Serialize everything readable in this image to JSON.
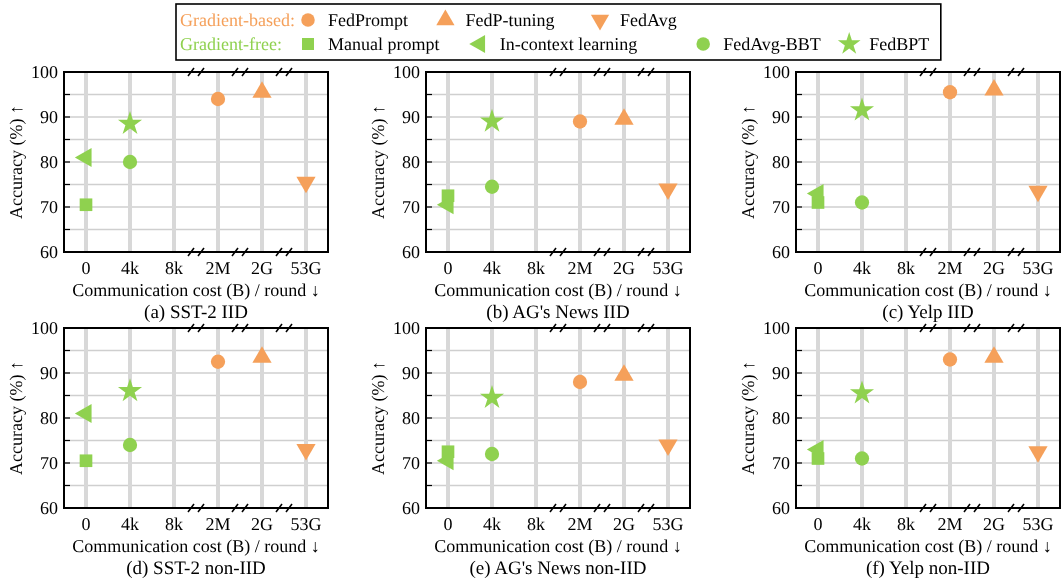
{
  "chart_data": [
    {
      "type": "scatter",
      "title": "(a) SST-2 IID",
      "xlabel": "Communication cost (B) / round ↓",
      "ylabel": "Accuracy (%) ↑",
      "categories": [
        "0",
        "4k",
        "8k",
        "2M",
        "2G",
        "53G"
      ],
      "ylim": [
        60,
        100
      ],
      "yticks": [
        60,
        {
          "value": 65,
          "label": null
        },
        70,
        {
          "value": 75,
          "label": null
        },
        80,
        {
          "value": 85,
          "label": null
        },
        90,
        {
          "value": 95,
          "label": null
        },
        100
      ],
      "grid": true,
      "legend": "top",
      "annotations": [
        "Gradient-based:",
        "Gradient-free:"
      ],
      "series": [
        {
          "name": "FedPrompt",
          "color": "#f5a05a",
          "marker": "circle",
          "x": [
            "2M"
          ],
          "values": [
            94
          ]
        },
        {
          "name": "FedP-tuning",
          "color": "#f5a05a",
          "marker": "triangle",
          "x": [
            "2G"
          ],
          "values": [
            95.5
          ]
        },
        {
          "name": "FedAvg",
          "color": "#f5a05a",
          "marker": "triangle-down",
          "x": [
            "53G"
          ],
          "values": [
            75.5
          ]
        },
        {
          "name": "Manual prompt",
          "color": "#8fd14f",
          "marker": "square",
          "x": [
            "0"
          ],
          "values": [
            70.5
          ]
        },
        {
          "name": "In-context learning",
          "color": "#8fd14f",
          "marker": "triangle-left",
          "x": [
            "0"
          ],
          "values": [
            81
          ]
        },
        {
          "name": "FedAvg-BBT",
          "color": "#8fd14f",
          "marker": "circle",
          "x": [
            "4k"
          ],
          "values": [
            80
          ]
        },
        {
          "name": "FedBPT",
          "color": "#8fd14f",
          "marker": "star",
          "x": [
            "4k"
          ],
          "values": [
            88.5
          ]
        }
      ]
    },
    {
      "type": "scatter",
      "title": "(b) AG's News IID",
      "xlabel": "Communication cost (B) / round ↓",
      "ylabel": "Accuracy (%) ↑",
      "categories": [
        "0",
        "4k",
        "8k",
        "2M",
        "2G",
        "53G"
      ],
      "ylim": [
        60,
        100
      ],
      "yticks": [
        60,
        {
          "value": 65,
          "label": null
        },
        70,
        {
          "value": 75,
          "label": null
        },
        80,
        {
          "value": 85,
          "label": null
        },
        90,
        {
          "value": 95,
          "label": null
        },
        100
      ],
      "grid": true,
      "series": [
        {
          "color": "#f5a05a",
          "marker": "circle",
          "x": [
            "2M"
          ],
          "values": [
            89
          ]
        },
        {
          "color": "#f5a05a",
          "marker": "triangle",
          "x": [
            "2G"
          ],
          "values": [
            89.5
          ]
        },
        {
          "color": "#f5a05a",
          "marker": "triangle-down",
          "x": [
            "53G"
          ],
          "values": [
            74
          ]
        },
        {
          "color": "#8fd14f",
          "marker": "square",
          "x": [
            "0"
          ],
          "values": [
            72.5
          ]
        },
        {
          "color": "#8fd14f",
          "marker": "triangle-left",
          "x": [
            "0"
          ],
          "values": [
            70.5
          ]
        },
        {
          "color": "#8fd14f",
          "marker": "circle",
          "x": [
            "4k"
          ],
          "values": [
            74.5
          ]
        },
        {
          "color": "#8fd14f",
          "marker": "star",
          "x": [
            "4k"
          ],
          "values": [
            89
          ]
        }
      ]
    },
    {
      "type": "scatter",
      "title": "(c) Yelp IID",
      "xlabel": "Communication cost (B) / round ↓",
      "ylabel": "Accuracy (%) ↑",
      "categories": [
        "0",
        "4k",
        "8k",
        "2M",
        "2G",
        "53G"
      ],
      "ylim": [
        60,
        100
      ],
      "yticks": [
        60,
        {
          "value": 65,
          "label": null
        },
        70,
        {
          "value": 75,
          "label": null
        },
        80,
        {
          "value": 85,
          "label": null
        },
        90,
        {
          "value": 95,
          "label": null
        },
        100
      ],
      "grid": true,
      "series": [
        {
          "color": "#f5a05a",
          "marker": "circle",
          "x": [
            "2M"
          ],
          "values": [
            95.5
          ]
        },
        {
          "color": "#f5a05a",
          "marker": "triangle",
          "x": [
            "2G"
          ],
          "values": [
            96
          ]
        },
        {
          "color": "#f5a05a",
          "marker": "triangle-down",
          "x": [
            "53G"
          ],
          "values": [
            73.5
          ]
        },
        {
          "color": "#8fd14f",
          "marker": "square",
          "x": [
            "0"
          ],
          "values": [
            71
          ]
        },
        {
          "color": "#8fd14f",
          "marker": "triangle-left",
          "x": [
            "0"
          ],
          "values": [
            73
          ]
        },
        {
          "color": "#8fd14f",
          "marker": "circle",
          "x": [
            "4k"
          ],
          "values": [
            71
          ]
        },
        {
          "color": "#8fd14f",
          "marker": "star",
          "x": [
            "4k"
          ],
          "values": [
            91.5
          ]
        }
      ]
    },
    {
      "type": "scatter",
      "title": "(d) SST-2 non-IID",
      "xlabel": "Communication cost (B) / round ↓",
      "ylabel": "Accuracy (%) ↑",
      "categories": [
        "0",
        "4k",
        "8k",
        "2M",
        "2G",
        "53G"
      ],
      "ylim": [
        60,
        100
      ],
      "yticks": [
        60,
        {
          "value": 65,
          "label": null
        },
        70,
        {
          "value": 75,
          "label": null
        },
        80,
        {
          "value": 85,
          "label": null
        },
        90,
        {
          "value": 95,
          "label": null
        },
        100
      ],
      "grid": true,
      "series": [
        {
          "color": "#f5a05a",
          "marker": "circle",
          "x": [
            "2M"
          ],
          "values": [
            92.5
          ]
        },
        {
          "color": "#f5a05a",
          "marker": "triangle",
          "x": [
            "2G"
          ],
          "values": [
            93.5
          ]
        },
        {
          "color": "#f5a05a",
          "marker": "triangle-down",
          "x": [
            "53G"
          ],
          "values": [
            73
          ]
        },
        {
          "color": "#8fd14f",
          "marker": "square",
          "x": [
            "0"
          ],
          "values": [
            70.5
          ]
        },
        {
          "color": "#8fd14f",
          "marker": "triangle-left",
          "x": [
            "0"
          ],
          "values": [
            81
          ]
        },
        {
          "color": "#8fd14f",
          "marker": "circle",
          "x": [
            "4k"
          ],
          "values": [
            74
          ]
        },
        {
          "color": "#8fd14f",
          "marker": "star",
          "x": [
            "4k"
          ],
          "values": [
            86
          ]
        }
      ]
    },
    {
      "type": "scatter",
      "title": "(e) AG's News non-IID",
      "xlabel": "Communication cost (B) / round ↓",
      "ylabel": "Accuracy (%) ↑",
      "categories": [
        "0",
        "4k",
        "8k",
        "2M",
        "2G",
        "53G"
      ],
      "ylim": [
        60,
        100
      ],
      "yticks": [
        60,
        {
          "value": 65,
          "label": null
        },
        70,
        {
          "value": 75,
          "label": null
        },
        80,
        {
          "value": 85,
          "label": null
        },
        90,
        {
          "value": 95,
          "label": null
        },
        100
      ],
      "grid": true,
      "series": [
        {
          "color": "#f5a05a",
          "marker": "circle",
          "x": [
            "2M"
          ],
          "values": [
            88
          ]
        },
        {
          "color": "#f5a05a",
          "marker": "triangle",
          "x": [
            "2G"
          ],
          "values": [
            89.5
          ]
        },
        {
          "color": "#f5a05a",
          "marker": "triangle-down",
          "x": [
            "53G"
          ],
          "values": [
            74
          ]
        },
        {
          "color": "#8fd14f",
          "marker": "square",
          "x": [
            "0"
          ],
          "values": [
            72.5
          ]
        },
        {
          "color": "#8fd14f",
          "marker": "triangle-left",
          "x": [
            "0"
          ],
          "values": [
            70.5
          ]
        },
        {
          "color": "#8fd14f",
          "marker": "circle",
          "x": [
            "4k"
          ],
          "values": [
            72
          ]
        },
        {
          "color": "#8fd14f",
          "marker": "star",
          "x": [
            "4k"
          ],
          "values": [
            84.5
          ]
        }
      ]
    },
    {
      "type": "scatter",
      "title": "(f) Yelp non-IID",
      "xlabel": "Communication cost (B) / round ↓",
      "ylabel": "Accuracy (%) ↑",
      "categories": [
        "0",
        "4k",
        "8k",
        "2M",
        "2G",
        "53G"
      ],
      "ylim": [
        60,
        100
      ],
      "yticks": [
        60,
        {
          "value": 65,
          "label": null
        },
        70,
        {
          "value": 75,
          "label": null
        },
        80,
        {
          "value": 85,
          "label": null
        },
        90,
        {
          "value": 95,
          "label": null
        },
        100
      ],
      "grid": true,
      "series": [
        {
          "color": "#f5a05a",
          "marker": "circle",
          "x": [
            "2M"
          ],
          "values": [
            93
          ]
        },
        {
          "color": "#f5a05a",
          "marker": "triangle",
          "x": [
            "2G"
          ],
          "values": [
            93.5
          ]
        },
        {
          "color": "#f5a05a",
          "marker": "triangle-down",
          "x": [
            "53G"
          ],
          "values": [
            72.5
          ]
        },
        {
          "color": "#8fd14f",
          "marker": "square",
          "x": [
            "0"
          ],
          "values": [
            71
          ]
        },
        {
          "color": "#8fd14f",
          "marker": "triangle-left",
          "x": [
            "0"
          ],
          "values": [
            73
          ]
        },
        {
          "color": "#8fd14f",
          "marker": "circle",
          "x": [
            "4k"
          ],
          "values": [
            71
          ]
        },
        {
          "color": "#8fd14f",
          "marker": "star",
          "x": [
            "4k"
          ],
          "values": [
            85.5
          ]
        }
      ]
    }
  ]
}
